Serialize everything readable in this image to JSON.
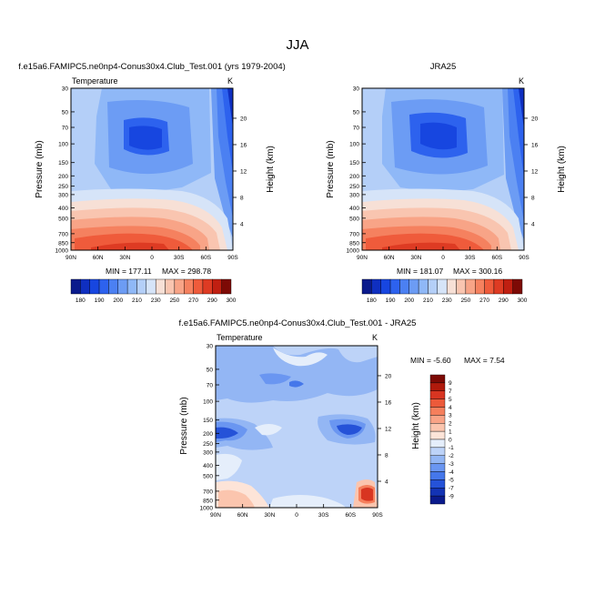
{
  "figure": {
    "title": "JJA"
  },
  "chart_data": [
    {
      "type": "heatmap",
      "title": "f.e15a6.FAMIPC5.ne0np4-Conus30x4.Club_Test.001 (yrs 1979-2004)",
      "subtitle_left": "Temperature",
      "units": "K",
      "xlabel": "",
      "ylabel": "Pressure (mb)",
      "ylabel_right": "Height (km)",
      "x_ticks": [
        "90N",
        "60N",
        "30N",
        "0",
        "30S",
        "60S",
        "90S"
      ],
      "y_ticks": [
        "30",
        "50",
        "70",
        "100",
        "150",
        "200",
        "250",
        "300",
        "400",
        "500",
        "700",
        "850",
        "1000"
      ],
      "y_right_ticks": [
        "20",
        "16",
        "12",
        "8",
        "4"
      ],
      "stats": {
        "min_label": "MIN = 177.11",
        "max_label": "MAX = 298.78",
        "min": 177.11,
        "max": 298.78
      }
    },
    {
      "type": "heatmap",
      "title": "JRA25",
      "subtitle_left": "",
      "units": "K",
      "xlabel": "",
      "ylabel": "Pressure (mb)",
      "ylabel_right": "Height (km)",
      "x_ticks": [
        "90N",
        "60N",
        "30N",
        "0",
        "30S",
        "60S",
        "90S"
      ],
      "y_ticks": [
        "30",
        "50",
        "70",
        "100",
        "150",
        "200",
        "250",
        "300",
        "400",
        "500",
        "700",
        "850",
        "1000"
      ],
      "y_right_ticks": [
        "20",
        "16",
        "12",
        "8",
        "4"
      ],
      "stats": {
        "min_label": "MIN = 181.07",
        "max_label": "MAX = 300.16",
        "min": 181.07,
        "max": 300.16
      }
    },
    {
      "type": "heatmap",
      "title": "f.e15a6.FAMIPC5.ne0np4-Conus30x4.Club_Test.001 - JRA25",
      "subtitle_left": "Temperature",
      "units": "K",
      "xlabel": "",
      "ylabel": "Pressure (mb)",
      "ylabel_right": "Height (km)",
      "x_ticks": [
        "90N",
        "60N",
        "30N",
        "0",
        "30S",
        "60S",
        "90S"
      ],
      "y_ticks": [
        "30",
        "50",
        "70",
        "100",
        "150",
        "200",
        "250",
        "300",
        "400",
        "500",
        "700",
        "850",
        "1000"
      ],
      "y_right_ticks": [
        "20",
        "16",
        "12",
        "8",
        "4"
      ],
      "stats": {
        "min_label": "MIN = -5.60",
        "max_label": "MAX = 7.54",
        "min": -5.6,
        "max": 7.54
      }
    }
  ],
  "colorbar_temp": {
    "labels": [
      "180",
      "190",
      "200",
      "210",
      "230",
      "250",
      "270",
      "290",
      "300"
    ],
    "colors": [
      "#0a1a8c",
      "#0f2fc0",
      "#1746e0",
      "#2d62ee",
      "#4b80f2",
      "#6c9cf4",
      "#8fb8f7",
      "#b4cff8",
      "#d6e4f8",
      "#f7e0d6",
      "#f9c5b0",
      "#f8a487",
      "#f5815f",
      "#ef5b3b",
      "#de3b23",
      "#c01f11",
      "#7d0a05"
    ]
  },
  "colorbar_diff": {
    "labels": [
      "9",
      "7",
      "5",
      "4",
      "3",
      "2",
      "1",
      "0",
      "-1",
      "-2",
      "-3",
      "-4",
      "-5",
      "-7",
      "-9"
    ],
    "colors": [
      "#7d0a05",
      "#b01a0c",
      "#d83521",
      "#ec5a3a",
      "#f57f5c",
      "#f9a386",
      "#fbc5ae",
      "#fde4d8",
      "#e5eefb",
      "#bdd3f8",
      "#93b6f4",
      "#6a96f1",
      "#4577ea",
      "#2552d8",
      "#1333b4",
      "#0a1a8c"
    ]
  }
}
